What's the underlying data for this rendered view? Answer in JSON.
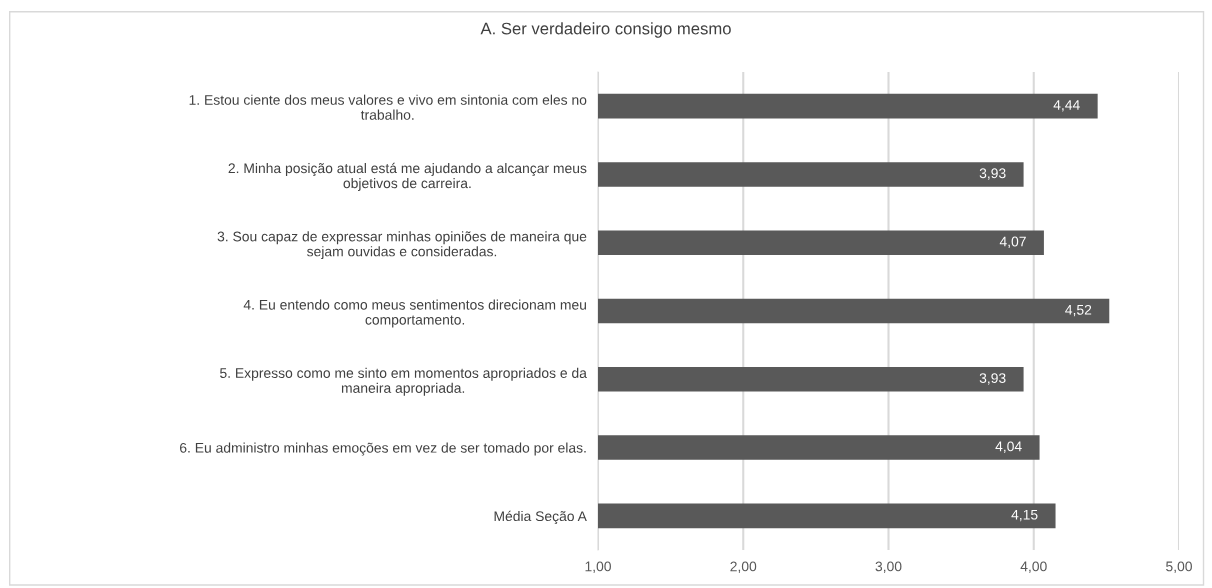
{
  "chart_data": {
    "type": "bar",
    "orientation": "horizontal",
    "title": "A. Ser verdadeiro consigo mesmo",
    "categories": [
      "1. Estou ciente dos meus valores e vivo em sintonia com eles no\ntrabalho.",
      "2. Minha posição atual está me ajudando a alcançar meus\nobjetivos de carreira.",
      "3. Sou capaz de expressar minhas opiniões de maneira que\nsejam ouvidas e consideradas.",
      "4. Eu entendo como meus sentimentos direcionam meu\ncomportamento.",
      "5. Expresso como me sinto em momentos apropriados e da\nmaneira apropriada.",
      "6. Eu administro minhas emoções em vez de ser tomado por elas.",
      "Média Seção A"
    ],
    "values": [
      4.44,
      3.93,
      4.07,
      4.52,
      3.93,
      4.04,
      4.15
    ],
    "value_labels": [
      "4,44",
      "3,93",
      "4,07",
      "4,52",
      "3,93",
      "4,04",
      "4,15"
    ],
    "color": "#595959",
    "xlim": [
      1,
      5
    ],
    "xticks": [
      {
        "value": 1,
        "label": "1,00"
      },
      {
        "value": 2,
        "label": "2,00"
      },
      {
        "value": 3,
        "label": "3,00"
      },
      {
        "value": 4,
        "label": "4,00"
      },
      {
        "value": 5,
        "label": "5,00"
      }
    ],
    "grid": "x"
  }
}
